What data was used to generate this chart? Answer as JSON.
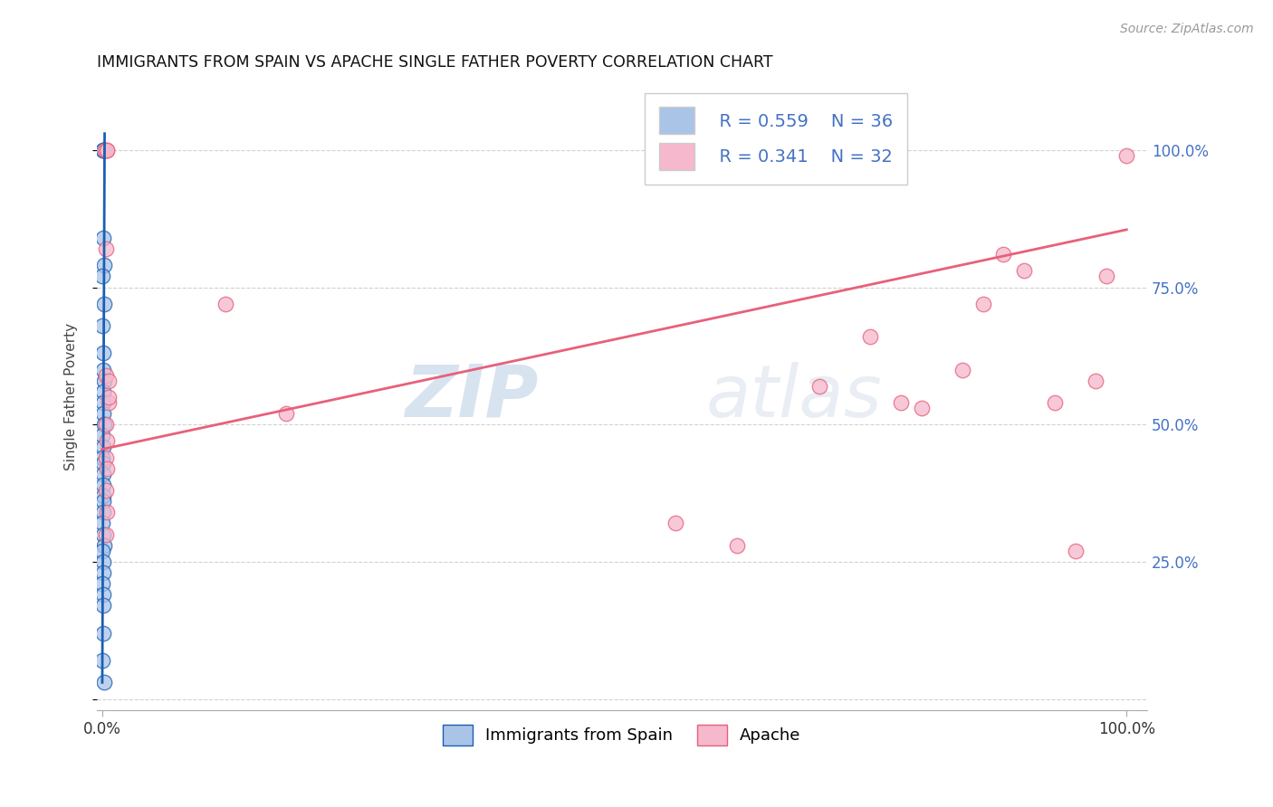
{
  "title": "IMMIGRANTS FROM SPAIN VS APACHE SINGLE FATHER POVERTY CORRELATION CHART",
  "source": "Source: ZipAtlas.com",
  "ylabel": "Single Father Poverty",
  "legend_label1": "Immigrants from Spain",
  "legend_label2": "Apache",
  "legend_R1": "R = 0.559",
  "legend_N1": "N = 36",
  "legend_R2": "R = 0.341",
  "legend_N2": "N = 32",
  "color_blue": "#aac4e8",
  "color_pink": "#f5b8cc",
  "trendline_blue": "#1a5fb4",
  "trendline_pink": "#e8607a",
  "watermark_zip": "ZIP",
  "watermark_atlas": "atlas",
  "background_color": "#ffffff",
  "grid_color": "#cccccc",
  "blue_scatter_x": [
    0.0012,
    0.0008,
    0.0015,
    0.001,
    0.0018,
    0.0006,
    0.002,
    0.0005,
    0.0014,
    0.0007,
    0.0016,
    0.0011,
    0.0008,
    0.0013,
    0.0017,
    0.0006,
    0.001,
    0.0005,
    0.0014,
    0.0009,
    0.0007,
    0.0011,
    0.0015,
    0.001,
    0.0006,
    0.0013,
    0.0019,
    0.0005,
    0.0009,
    0.0014,
    0.0006,
    0.001,
    0.0013,
    0.0009,
    0.0004,
    0.0022
  ],
  "blue_scatter_y": [
    1.0,
    1.0,
    1.0,
    0.84,
    0.79,
    0.77,
    0.72,
    0.68,
    0.63,
    0.6,
    0.58,
    0.56,
    0.54,
    0.52,
    0.5,
    0.48,
    0.46,
    0.44,
    0.43,
    0.41,
    0.39,
    0.37,
    0.36,
    0.34,
    0.32,
    0.3,
    0.28,
    0.27,
    0.25,
    0.23,
    0.21,
    0.19,
    0.17,
    0.12,
    0.07,
    0.03
  ],
  "pink_scatter_x": [
    0.003,
    0.005,
    0.005,
    0.004,
    0.12,
    0.004,
    0.006,
    0.006,
    0.004,
    0.005,
    0.004,
    0.18,
    0.005,
    0.004,
    0.005,
    0.56,
    0.004,
    0.62,
    0.7,
    0.006,
    0.75,
    0.78,
    0.8,
    0.84,
    0.86,
    0.88,
    0.9,
    0.93,
    0.95,
    0.97,
    0.98,
    1.0
  ],
  "pink_scatter_y": [
    1.0,
    1.0,
    1.0,
    0.82,
    0.72,
    0.59,
    0.58,
    0.54,
    0.5,
    0.47,
    0.44,
    0.52,
    0.42,
    0.38,
    0.34,
    0.32,
    0.3,
    0.28,
    0.57,
    0.55,
    0.66,
    0.54,
    0.53,
    0.6,
    0.72,
    0.81,
    0.78,
    0.54,
    0.27,
    0.58,
    0.77,
    0.99
  ],
  "blue_trend_x": [
    0.0002,
    0.0025
  ],
  "blue_trend_y": [
    0.03,
    1.03
  ],
  "pink_trend_x": [
    0.0,
    1.0
  ],
  "pink_trend_y": [
    0.455,
    0.855
  ],
  "xlim": [
    -0.005,
    1.02
  ],
  "ylim": [
    -0.02,
    1.12
  ],
  "yticks": [
    0.0,
    0.25,
    0.5,
    0.75,
    1.0
  ],
  "ytick_labels": [
    "",
    "25.0%",
    "50.0%",
    "75.0%",
    "100.0%"
  ],
  "xticks": [
    0.0,
    1.0
  ],
  "xtick_labels": [
    "0.0%",
    "100.0%"
  ]
}
